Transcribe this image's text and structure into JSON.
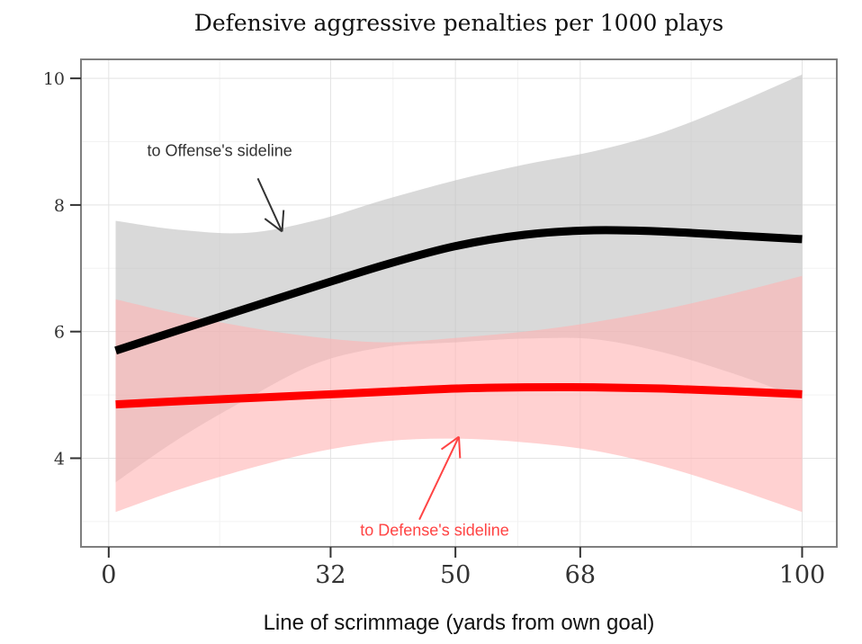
{
  "chart_data": {
    "type": "line",
    "title": "Defensive aggressive penalties per 1000 plays",
    "xlabel": "Line of scrimmage (yards from own goal)",
    "ylabel": "",
    "xlim": [
      -4,
      105
    ],
    "ylim": [
      2.6,
      10.3
    ],
    "grid": true,
    "xticks": [
      0,
      32,
      50,
      68,
      100
    ],
    "yticks": [
      4,
      6,
      8,
      10
    ],
    "series": [
      {
        "color": "#000000",
        "band_color": "#bfbfbf",
        "x": [
          1,
          10,
          20,
          30,
          40,
          50,
          60,
          70,
          80,
          90,
          100
        ],
        "y": [
          5.7,
          6.02,
          6.37,
          6.72,
          7.06,
          7.35,
          7.53,
          7.6,
          7.58,
          7.52,
          7.46
        ],
        "lower": [
          3.62,
          4.3,
          4.94,
          5.5,
          5.76,
          5.83,
          5.89,
          5.88,
          5.67,
          5.34,
          4.95
        ],
        "upper": [
          7.75,
          7.61,
          7.56,
          7.76,
          8.09,
          8.39,
          8.64,
          8.85,
          9.15,
          9.58,
          10.06
        ]
      },
      {
        "color": "#ff0000",
        "band_color": "#ffb3b3",
        "x": [
          1,
          10,
          20,
          30,
          40,
          50,
          60,
          70,
          80,
          90,
          100
        ],
        "y": [
          4.85,
          4.9,
          4.95,
          5.0,
          5.05,
          5.1,
          5.12,
          5.12,
          5.1,
          5.06,
          5.01
        ],
        "lower": [
          3.15,
          3.5,
          3.83,
          4.1,
          4.27,
          4.31,
          4.25,
          4.12,
          3.87,
          3.53,
          3.15
        ],
        "upper": [
          6.51,
          6.28,
          6.07,
          5.91,
          5.83,
          5.9,
          6.0,
          6.15,
          6.35,
          6.6,
          6.88
        ]
      }
    ],
    "annotations": [
      {
        "text": "to Offense's sideline",
        "color": "#333333",
        "x": 16,
        "y": 8.77,
        "arrow_from": [
          21.5,
          8.42
        ],
        "arrow_to": [
          25,
          7.58
        ]
      },
      {
        "text": "to Defense's sideline",
        "color": "#ff4444",
        "x": 47,
        "y": 2.78,
        "arrow_from": [
          44.8,
          3.03
        ],
        "arrow_to": [
          50.5,
          4.34
        ]
      }
    ]
  }
}
